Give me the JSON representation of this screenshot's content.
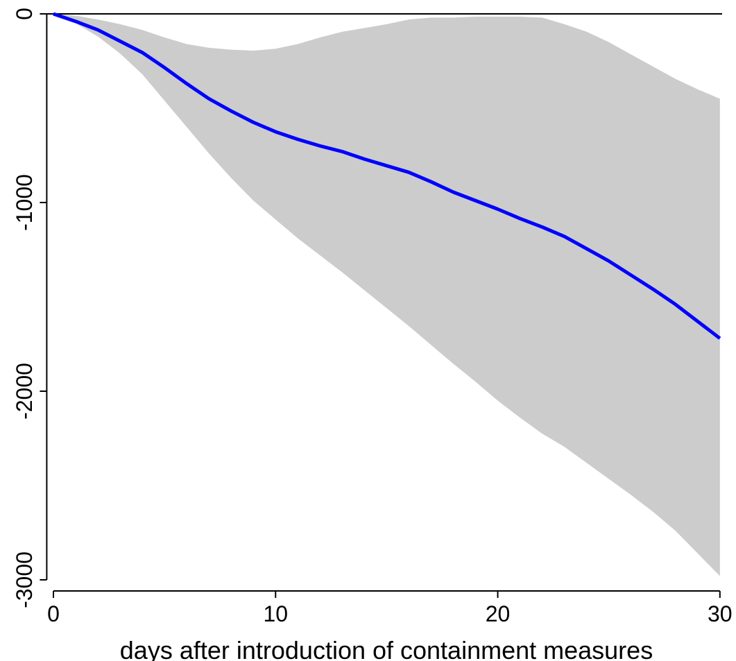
{
  "chart_data": {
    "type": "line",
    "x_label": "days after introduction of containment measures",
    "x": [
      0,
      1,
      2,
      3,
      4,
      5,
      6,
      7,
      8,
      9,
      10,
      11,
      12,
      13,
      14,
      15,
      16,
      17,
      18,
      19,
      20,
      21,
      22,
      23,
      24,
      25,
      26,
      27,
      28,
      29,
      30
    ],
    "series": [
      {
        "color": "#0000ff",
        "values": [
          0,
          -40,
          -85,
          -145,
          -205,
          -285,
          -370,
          -450,
          -515,
          -575,
          -625,
          -665,
          -700,
          -730,
          -770,
          -805,
          -840,
          -890,
          -945,
          -990,
          -1035,
          -1085,
          -1130,
          -1180,
          -1245,
          -1310,
          -1385,
          -1460,
          -1540,
          -1630,
          -1720
        ]
      }
    ],
    "band": {
      "color": "#cccccc",
      "upper": [
        0,
        -10,
        -30,
        -55,
        -85,
        -125,
        -160,
        -180,
        -190,
        -195,
        -185,
        -160,
        -125,
        -95,
        -75,
        -55,
        -30,
        -20,
        -20,
        -15,
        -15,
        -15,
        -20,
        -55,
        -95,
        -150,
        -215,
        -280,
        -345,
        -400,
        -450
      ],
      "lower": [
        0,
        -50,
        -120,
        -210,
        -320,
        -460,
        -600,
        -740,
        -870,
        -990,
        -1090,
        -1190,
        -1280,
        -1370,
        -1465,
        -1560,
        -1655,
        -1755,
        -1855,
        -1950,
        -2050,
        -2140,
        -2225,
        -2295,
        -2380,
        -2465,
        -2550,
        -2640,
        -2740,
        -2860,
        -2980
      ]
    },
    "reference_line": 0,
    "xlim": [
      -0.3,
      30.1
    ],
    "ylim": [
      -3000,
      55
    ],
    "xticks": [
      0,
      10,
      20,
      30
    ],
    "yticks": [
      0,
      -1000,
      -2000,
      -3000
    ]
  }
}
